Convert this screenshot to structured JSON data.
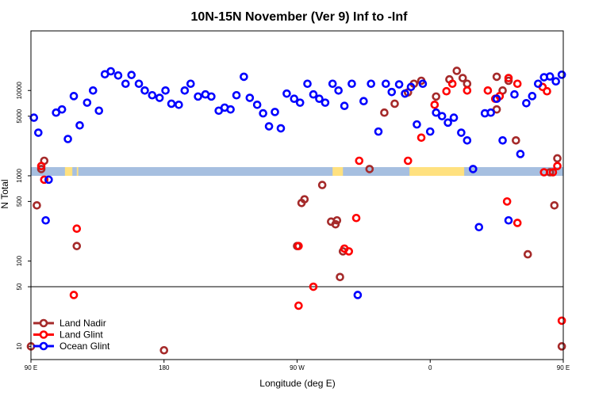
{
  "chart_data": {
    "type": "scatter",
    "title": "10N-15N November (Ver 9)   Inf to -Inf",
    "xlabel": "Longitude (deg E)",
    "ylabel": "N Total",
    "x_scale": "linear",
    "y_scale": "log",
    "xlim": [
      90,
      450
    ],
    "ylim": [
      7,
      50000
    ],
    "x_ticks": [
      {
        "value": 90,
        "label": "90 E"
      },
      {
        "value": 180,
        "label": "180"
      },
      {
        "value": 270,
        "label": "90 W"
      },
      {
        "value": 360,
        "label": "0"
      },
      {
        "value": 450,
        "label": "90 E"
      },
      {
        "value": 540,
        "label": "180"
      }
    ],
    "y_ticks": [
      10,
      50,
      100,
      500,
      1000,
      5000,
      10000
    ],
    "reference_line_y": 50,
    "legend": "bottom-left",
    "land_mask": {
      "land_color": "#FFE17F",
      "ocean_color": "#A6BFE0"
    },
    "series": [
      {
        "name": "Land Nadir",
        "color": "#A52A2A",
        "points": [
          [
            90,
            10
          ],
          [
            94,
            450
          ],
          [
            97,
            1200
          ],
          [
            99,
            1500
          ],
          [
            121,
            150
          ],
          [
            180,
            9
          ],
          [
            270,
            150
          ],
          [
            273,
            480
          ],
          [
            275,
            530
          ],
          [
            287,
            780
          ],
          [
            293,
            290
          ],
          [
            296,
            270
          ],
          [
            301,
            130
          ],
          [
            297,
            300
          ],
          [
            299,
            65
          ],
          [
            319,
            1200
          ],
          [
            329,
            5500
          ],
          [
            336,
            7000
          ],
          [
            345,
            9500
          ],
          [
            349,
            12000
          ],
          [
            354,
            13000
          ],
          [
            364,
            8500
          ],
          [
            373,
            13500
          ],
          [
            378,
            17000
          ],
          [
            382,
            14000
          ],
          [
            385,
            12000
          ],
          [
            405,
            14500
          ],
          [
            409,
            10000
          ],
          [
            413,
            13000
          ],
          [
            405,
            6000
          ],
          [
            418,
            2600
          ],
          [
            426,
            120
          ],
          [
            441,
            1100
          ],
          [
            444,
            450
          ],
          [
            446,
            1600
          ],
          [
            449,
            10
          ]
        ]
      },
      {
        "name": "Land Glint",
        "color": "#FF0000",
        "points": [
          [
            97,
            1300
          ],
          [
            99,
            900
          ],
          [
            121,
            240
          ],
          [
            119,
            40
          ],
          [
            271,
            150
          ],
          [
            271,
            30
          ],
          [
            281,
            50
          ],
          [
            302,
            140
          ],
          [
            305,
            130
          ],
          [
            310,
            320
          ],
          [
            312,
            1500
          ],
          [
            345,
            1500
          ],
          [
            354,
            2800
          ],
          [
            363,
            6800
          ],
          [
            371,
            9800
          ],
          [
            375,
            12000
          ],
          [
            385,
            10000
          ],
          [
            399,
            10000
          ],
          [
            404,
            8000
          ],
          [
            407,
            8600
          ],
          [
            413,
            14000
          ],
          [
            419,
            12000
          ],
          [
            436,
            11000
          ],
          [
            439,
            9800
          ],
          [
            412,
            500
          ],
          [
            419,
            280
          ],
          [
            437,
            1100
          ],
          [
            443,
            1100
          ],
          [
            446,
            1300
          ],
          [
            449,
            20
          ],
          [
            451,
            10
          ],
          [
            454,
            250
          ],
          [
            456,
            40
          ]
        ]
      },
      {
        "name": "Ocean Glint",
        "color": "#0000FF",
        "points": [
          [
            92,
            4800
          ],
          [
            95,
            3200
          ],
          [
            100,
            300
          ],
          [
            102,
            900
          ],
          [
            107,
            5500
          ],
          [
            111,
            6000
          ],
          [
            115,
            2700
          ],
          [
            119,
            8600
          ],
          [
            123,
            3900
          ],
          [
            128,
            7200
          ],
          [
            132,
            10000
          ],
          [
            136,
            5800
          ],
          [
            140,
            15500
          ],
          [
            144,
            16800
          ],
          [
            149,
            15000
          ],
          [
            154,
            12000
          ],
          [
            158,
            15200
          ],
          [
            163,
            12000
          ],
          [
            167,
            10000
          ],
          [
            172,
            8800
          ],
          [
            177,
            8200
          ],
          [
            181,
            10000
          ],
          [
            185,
            7000
          ],
          [
            190,
            6800
          ],
          [
            194,
            10000
          ],
          [
            198,
            12000
          ],
          [
            203,
            8500
          ],
          [
            208,
            9000
          ],
          [
            212,
            8500
          ],
          [
            217,
            5800
          ],
          [
            221,
            6300
          ],
          [
            225,
            6000
          ],
          [
            229,
            8800
          ],
          [
            234,
            14500
          ],
          [
            238,
            8200
          ],
          [
            243,
            6800
          ],
          [
            247,
            5400
          ],
          [
            251,
            3800
          ],
          [
            255,
            5600
          ],
          [
            259,
            3600
          ],
          [
            263,
            9200
          ],
          [
            268,
            8000
          ],
          [
            272,
            7200
          ],
          [
            277,
            12000
          ],
          [
            281,
            9000
          ],
          [
            285,
            8000
          ],
          [
            289,
            7200
          ],
          [
            294,
            12000
          ],
          [
            298,
            10000
          ],
          [
            302,
            6600
          ],
          [
            307,
            12000
          ],
          [
            311,
            40
          ],
          [
            315,
            7500
          ],
          [
            320,
            12000
          ],
          [
            325,
            3300
          ],
          [
            330,
            12000
          ],
          [
            334,
            9600
          ],
          [
            339,
            11800
          ],
          [
            343,
            9200
          ],
          [
            347,
            11000
          ],
          [
            351,
            4000
          ],
          [
            355,
            12000
          ],
          [
            360,
            3300
          ],
          [
            364,
            5500
          ],
          [
            368,
            5000
          ],
          [
            372,
            4200
          ],
          [
            376,
            4800
          ],
          [
            381,
            3200
          ],
          [
            385,
            2600
          ],
          [
            389,
            1200
          ],
          [
            393,
            250
          ],
          [
            397,
            5400
          ],
          [
            401,
            5500
          ],
          [
            405,
            8000
          ],
          [
            409,
            2600
          ],
          [
            413,
            300
          ],
          [
            417,
            9000
          ],
          [
            421,
            1800
          ],
          [
            425,
            7100
          ],
          [
            429,
            8600
          ],
          [
            433,
            12000
          ],
          [
            437,
            14300
          ],
          [
            441,
            14600
          ],
          [
            445,
            12800
          ],
          [
            449,
            15300
          ]
        ]
      }
    ]
  },
  "land_strip_segments": [
    [
      113,
      118
    ],
    [
      121,
      122
    ],
    [
      294,
      301
    ],
    [
      346,
      383
    ],
    [
      451,
      457
    ],
    [
      468,
      474
    ],
    [
      547,
      550
    ]
  ]
}
